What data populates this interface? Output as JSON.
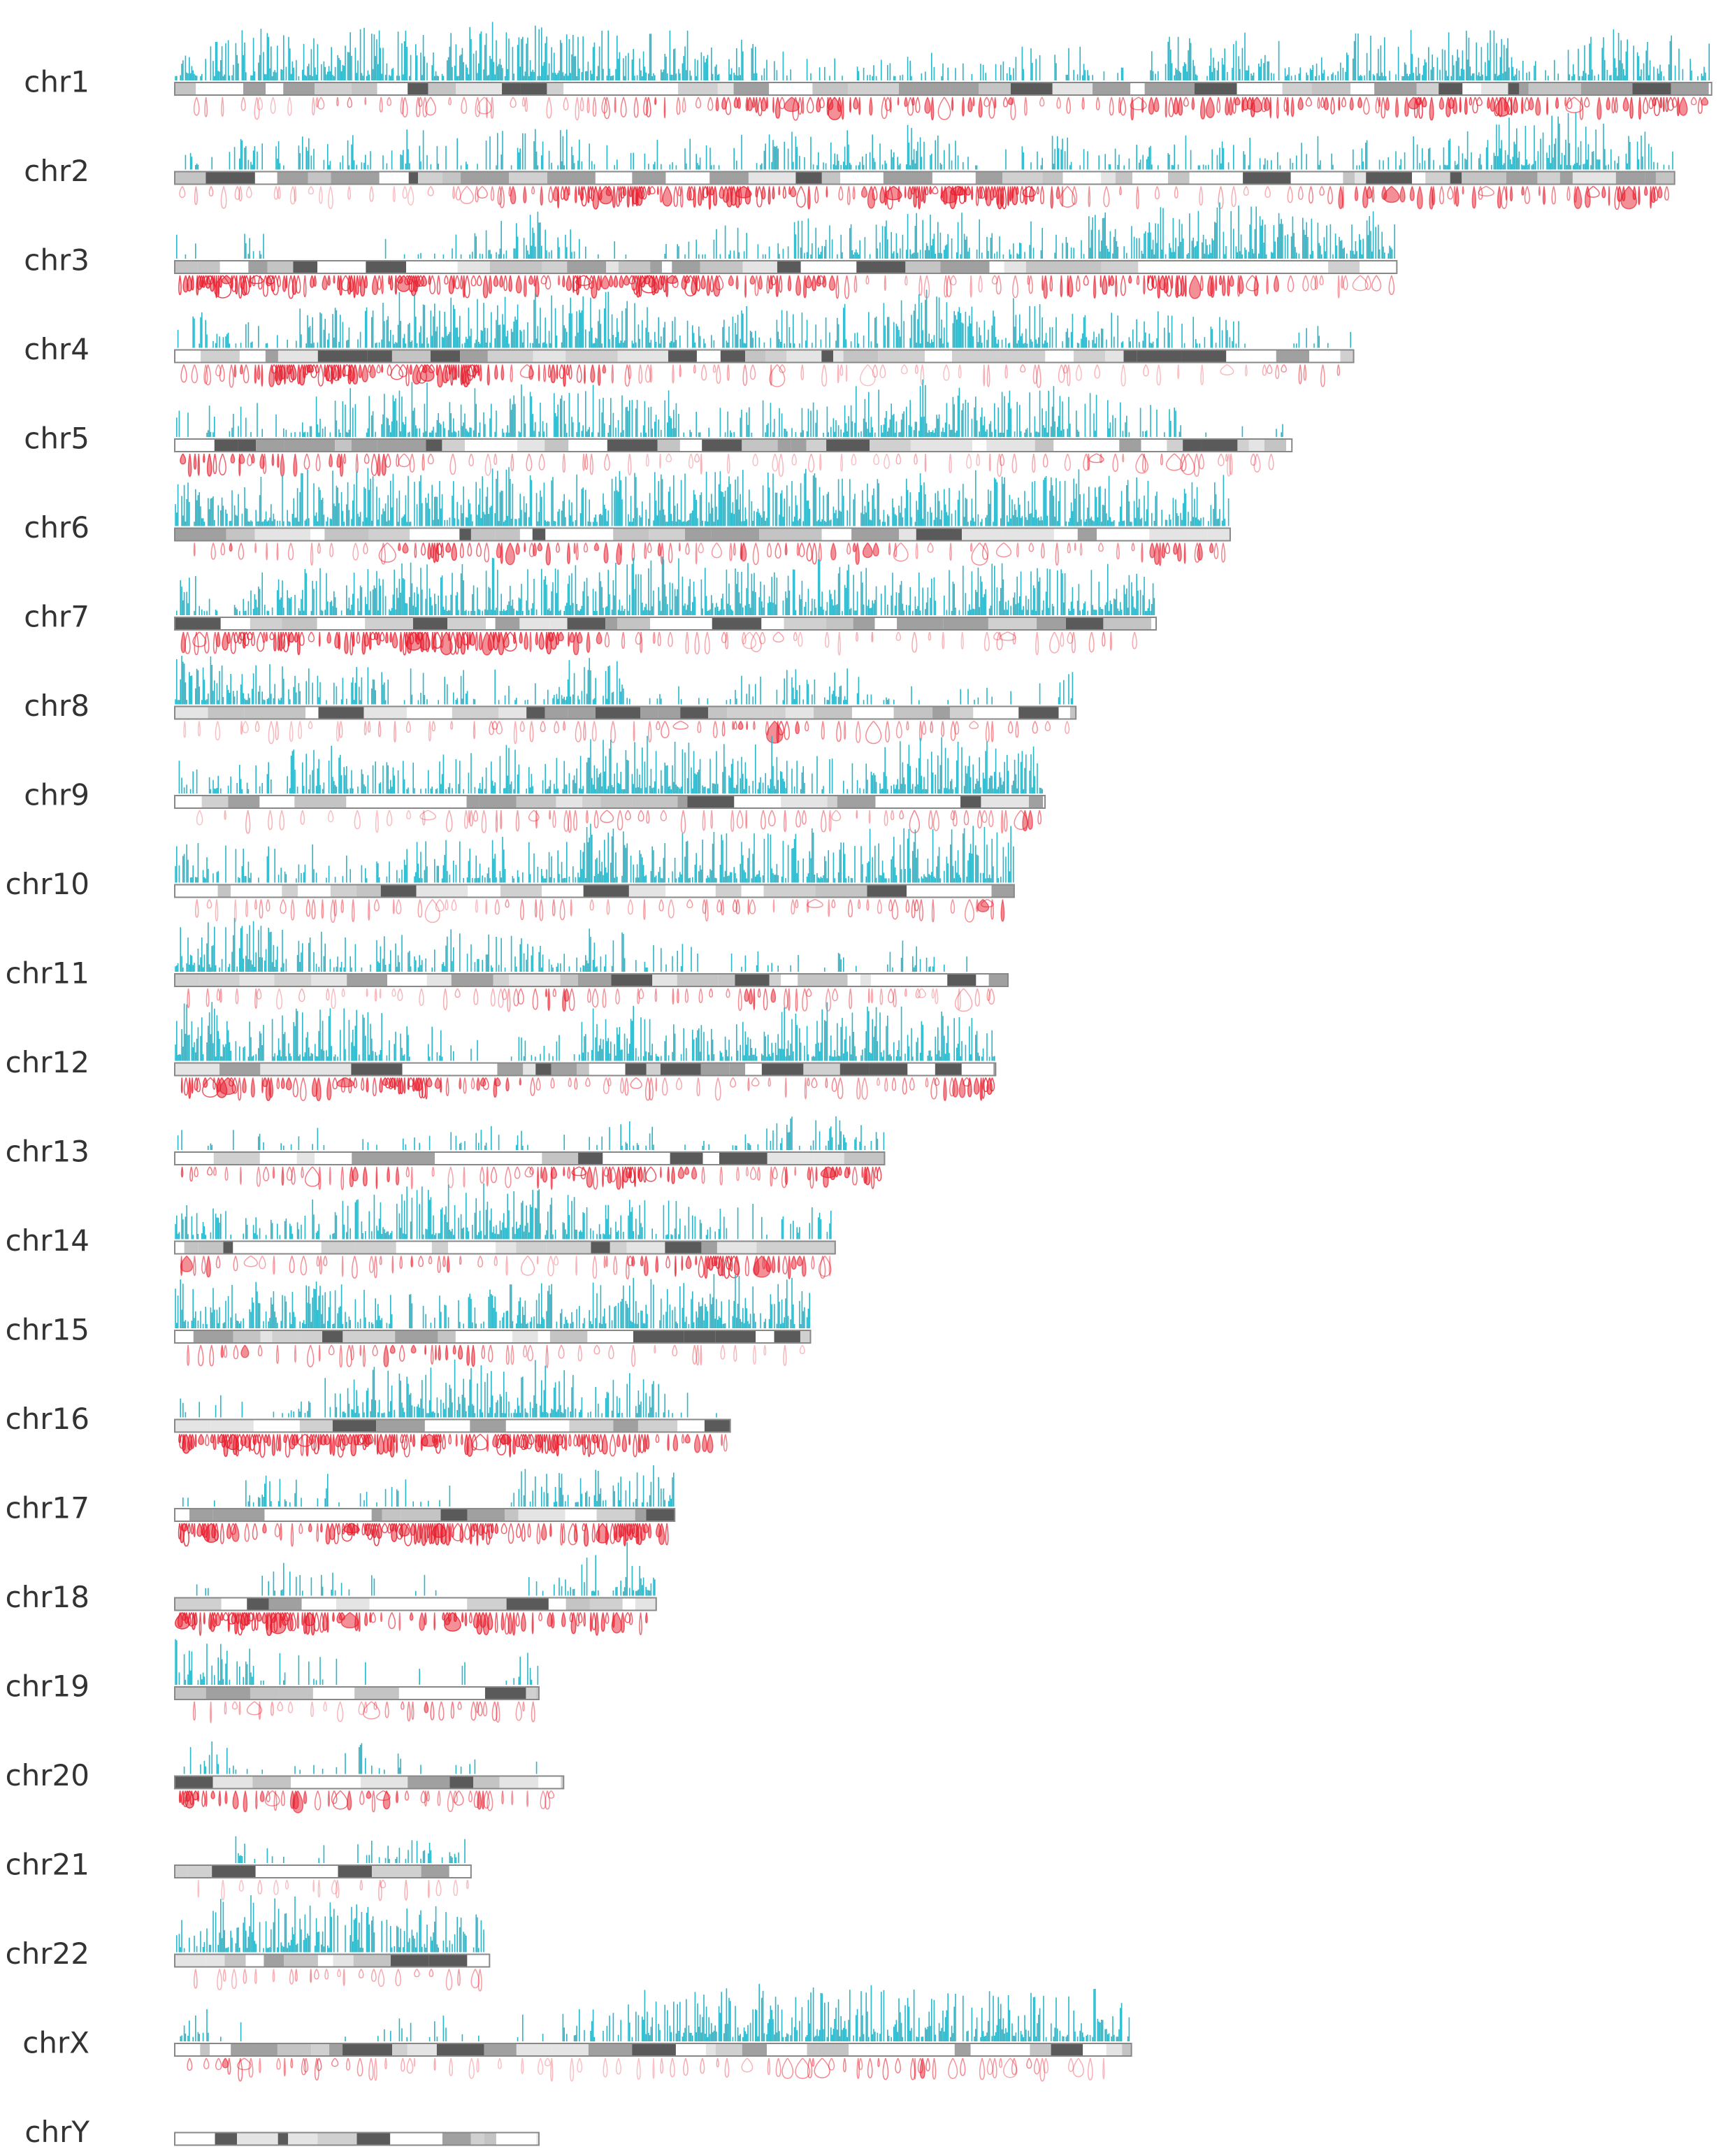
{
  "chart_data": {
    "type": "karyogram",
    "categories": [
      "chr1",
      "chr2",
      "chr3",
      "chr4",
      "chr5",
      "chr6",
      "chr7",
      "chr8",
      "chr9",
      "chr10",
      "chr11",
      "chr12",
      "chr13",
      "chr14",
      "chr15",
      "chr16",
      "chr17",
      "chr18",
      "chr19",
      "chr20",
      "chr21",
      "chr22",
      "chrX",
      "chrY"
    ],
    "values": [
      249,
      243,
      198,
      191,
      181,
      171,
      159,
      146,
      141,
      136,
      135,
      133,
      115,
      107,
      103,
      90,
      81,
      78,
      59,
      63,
      48,
      51,
      155,
      59
    ],
    "signal_color": "#2bb5c8",
    "loop_color": "#e8202f"
  }
}
